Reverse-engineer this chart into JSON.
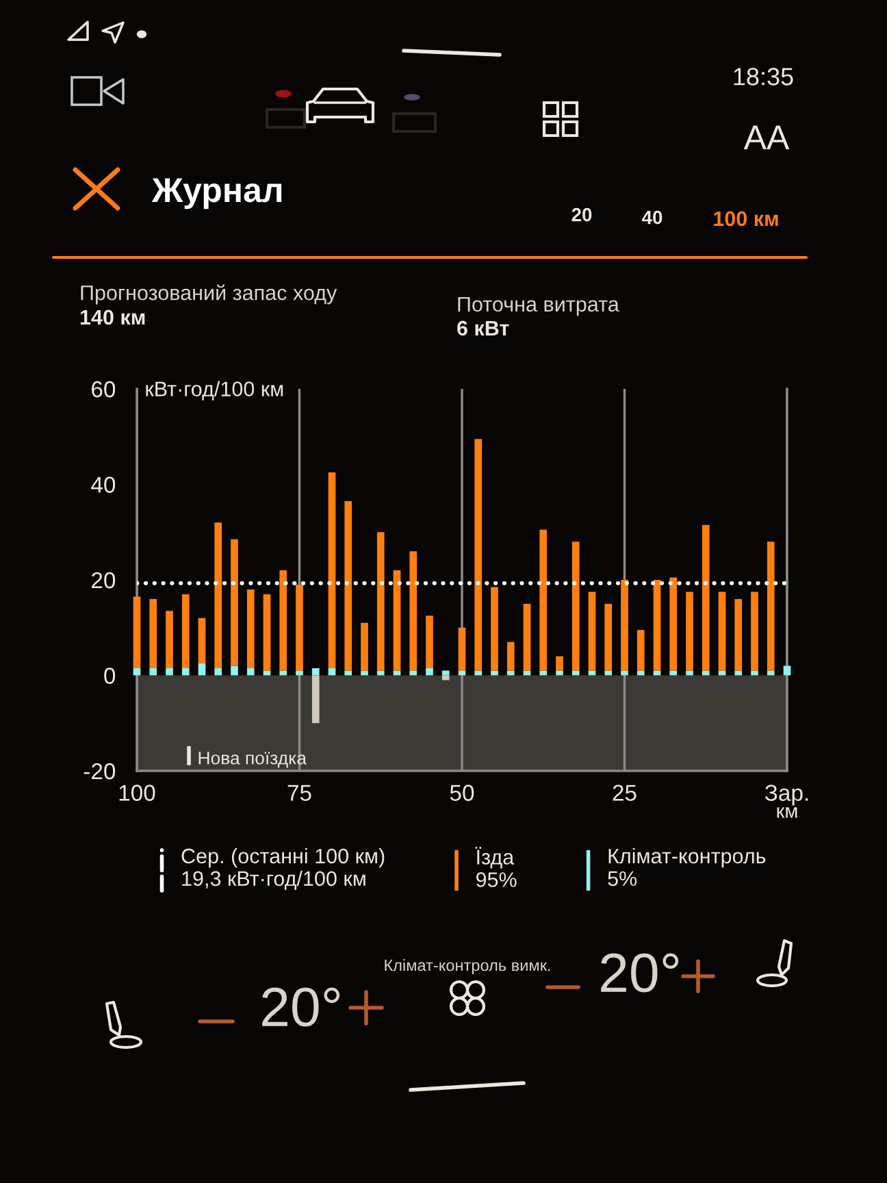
{
  "chart_data": {
    "type": "bar",
    "title": "Журнал",
    "ylabel": "кВт·год/100 км",
    "xlabel": "км",
    "x": [
      100,
      97.5,
      95,
      92.5,
      90,
      87.5,
      85,
      82.5,
      80,
      77.5,
      75,
      72.5,
      70,
      67.5,
      65,
      62.5,
      60,
      57.5,
      55,
      52.5,
      50,
      47.5,
      45,
      42.5,
      40,
      37.5,
      35,
      32.5,
      30,
      27.5,
      25,
      22.5,
      20,
      17.5,
      15,
      12.5,
      10,
      7.5,
      5,
      2.5,
      0
    ],
    "xlim": [
      100,
      0
    ],
    "xticks": [
      100,
      75,
      50,
      25,
      {
        "value": 0,
        "label": "Зар."
      }
    ],
    "ylim": [
      -20,
      60
    ],
    "yticks": [
      -20,
      0,
      20,
      40,
      60
    ],
    "stacked": true,
    "grid": "x",
    "legend": "bottom",
    "series": [
      {
        "name": "Клімат-контроль",
        "color": "#8ff3ef",
        "values": [
          1.5,
          1.5,
          1.5,
          1.5,
          2.5,
          1.5,
          2,
          1.5,
          1,
          1,
          1,
          1.5,
          1.5,
          1,
          1,
          1,
          1,
          1,
          1.5,
          1,
          1,
          1,
          1,
          1,
          1,
          1,
          1,
          1,
          1,
          1,
          1,
          1,
          1,
          1,
          1,
          1,
          1,
          1,
          1,
          1,
          2
        ]
      },
      {
        "name": "Їзда",
        "color": "#ff7f11",
        "values": [
          15,
          14.5,
          12,
          15.5,
          9.5,
          30.5,
          26.5,
          16.5,
          16,
          21,
          18,
          null,
          41,
          35.5,
          10,
          29,
          21,
          25,
          11,
          null,
          9,
          48.5,
          17.5,
          6,
          14,
          29.5,
          3,
          27,
          16.5,
          14,
          19,
          8.5,
          19,
          19.5,
          16.5,
          30.5,
          16.5,
          15,
          16.5,
          27,
          null
        ]
      },
      {
        "color": "#cfcabb",
        "values": [
          null,
          null,
          null,
          null,
          null,
          null,
          null,
          null,
          null,
          null,
          null,
          -10,
          null,
          null,
          null,
          null,
          null,
          null,
          null,
          -1,
          null,
          null,
          null,
          null,
          null,
          null,
          null,
          null,
          null,
          null,
          null,
          null,
          null,
          null,
          null,
          null,
          null,
          null,
          null,
          null,
          null
        ]
      }
    ],
    "ref_lines": [
      {
        "axis": "y",
        "value": 19.3,
        "label": "Сер. (останні 100 км)",
        "color": "#ffffff",
        "line_style": "dotted"
      }
    ],
    "bands": [
      {
        "axis": "y",
        "from": -20,
        "to": 0,
        "color": "#3c3a34"
      }
    ],
    "annotations": [
      "18:35",
      "AA",
      "20",
      "40",
      "100 км",
      "Прогнозований запас ходу",
      "140 км",
      "Поточна витрата",
      "6 кВт",
      "19,3 кВт·год/100 км",
      "95%",
      "5%",
      {
        "text": "Нова поїздка",
        "x": 92,
        "y": -20
      },
      "Клімат-контроль вимк.",
      "20°",
      "20°"
    ]
  }
}
